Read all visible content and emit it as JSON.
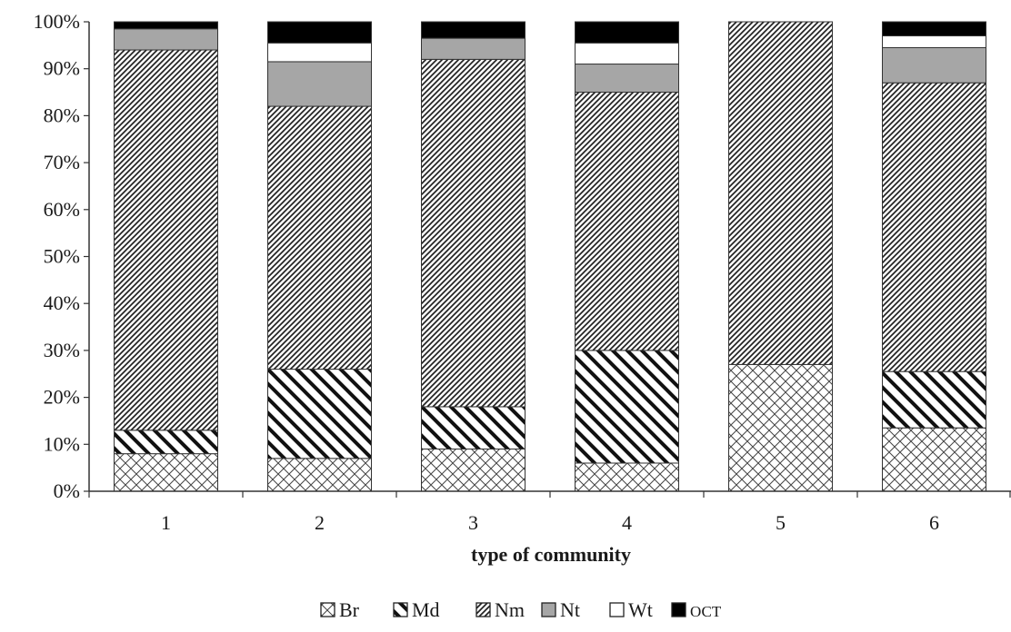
{
  "chart_data": {
    "type": "bar",
    "stacked": true,
    "percent": true,
    "categories": [
      "1",
      "2",
      "3",
      "4",
      "5",
      "6"
    ],
    "xlabel": "type of community",
    "ylabel": "",
    "ylim": [
      0,
      100
    ],
    "yticks": [
      "0%",
      "10%",
      "20%",
      "30%",
      "40%",
      "50%",
      "60%",
      "70%",
      "80%",
      "90%",
      "100%"
    ],
    "grid": false,
    "legend_position": "bottom",
    "series": [
      {
        "name": "Br",
        "pattern": "crosshatch",
        "values": [
          8,
          7,
          9,
          6,
          27,
          13.5
        ]
      },
      {
        "name": "Md",
        "pattern": "wide-diagonal",
        "values": [
          5,
          19,
          9,
          24,
          0,
          12
        ]
      },
      {
        "name": "Nm",
        "pattern": "fine-diagonal",
        "values": [
          81,
          56,
          74,
          55,
          73,
          61.5
        ]
      },
      {
        "name": "Nt",
        "pattern": "gray",
        "values": [
          4.5,
          9.5,
          4.5,
          6,
          0,
          7.5
        ]
      },
      {
        "name": "Wt",
        "pattern": "white",
        "values": [
          0,
          4,
          0,
          4.5,
          0,
          2.5
        ]
      },
      {
        "name": "ост",
        "pattern": "black",
        "values": [
          1.5,
          4.5,
          3.5,
          4.5,
          0,
          3
        ]
      }
    ],
    "colors": {
      "gray": "#a6a6a6",
      "black": "#000000",
      "outline": "#333333"
    }
  }
}
